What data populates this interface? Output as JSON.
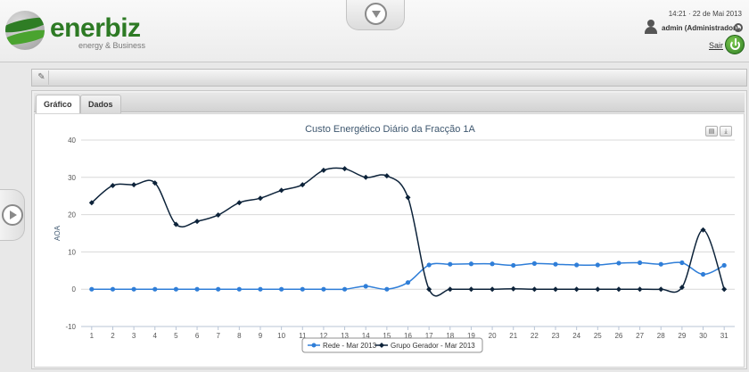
{
  "header": {
    "logo_text": "enerbiz",
    "logo_tagline": "energy & Business",
    "datetime": "14:21 · 22 de Mai 2013",
    "user": "admin (Administrador)",
    "logout_label": "Sair"
  },
  "tabs": [
    {
      "label": "Gráfico",
      "active": true
    },
    {
      "label": "Dados",
      "active": false
    }
  ],
  "chart_data": {
    "type": "line",
    "title": "Custo Energético Diário da Fracção 1A",
    "xlabel": "",
    "ylabel": "AOA",
    "ylim": [
      -10,
      40
    ],
    "yticks": [
      -10,
      0,
      10,
      20,
      30,
      40
    ],
    "grid": true,
    "legend_position": "bottom",
    "categories": [
      "1",
      "2",
      "3",
      "4",
      "5",
      "6",
      "7",
      "8",
      "9",
      "10",
      "11",
      "12",
      "13",
      "14",
      "15",
      "16",
      "17",
      "18",
      "19",
      "20",
      "21",
      "22",
      "23",
      "24",
      "25",
      "26",
      "27",
      "28",
      "29",
      "30",
      "31"
    ],
    "series": [
      {
        "name": "Rede - Mar 2013",
        "color": "#2f7ed8",
        "values": [
          0,
          0,
          0,
          0,
          0,
          0,
          0,
          0,
          0,
          0,
          0,
          0,
          0,
          0.8,
          0,
          1.8,
          6.5,
          6.7,
          6.8,
          6.8,
          6.4,
          6.9,
          6.7,
          6.5,
          6.5,
          7,
          7.1,
          6.7,
          7.1,
          4,
          6.4
        ]
      },
      {
        "name": "Grupo Gerador - Mar 2013",
        "color": "#0d233a",
        "values": [
          23.2,
          27.8,
          28,
          28.5,
          17.4,
          18.2,
          19.9,
          23.2,
          24.4,
          26.5,
          28,
          31.9,
          32.3,
          30,
          30.4,
          24.6,
          0,
          0,
          0,
          0,
          0.1,
          0,
          0,
          0,
          0,
          0,
          0,
          0,
          0.5,
          15.9,
          0
        ]
      }
    ]
  }
}
